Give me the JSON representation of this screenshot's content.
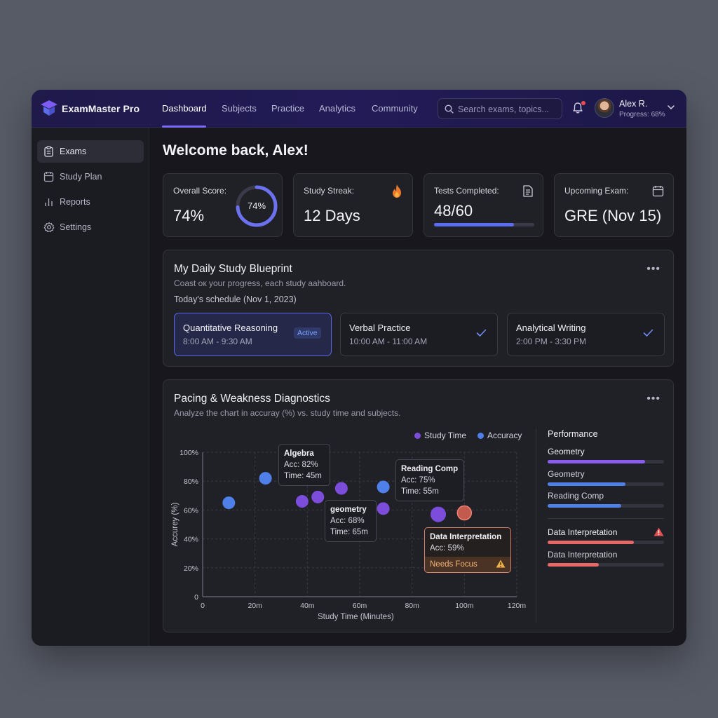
{
  "app": {
    "brand": "ExamMaster Pro",
    "nav": [
      "Dashboard",
      "Subjects",
      "Practice",
      "Analytics",
      "Community"
    ],
    "search_placeholder": "Search exams, topics...",
    "user": {
      "name": "Alex R.",
      "progress": "Progress: 68%"
    }
  },
  "sidebar": {
    "items": [
      {
        "label": "Exams",
        "icon": "clipboard-icon",
        "active": true
      },
      {
        "label": "Study Plan",
        "icon": "calendar-icon",
        "active": false
      },
      {
        "label": "Reports",
        "icon": "bar-chart-icon",
        "active": false
      },
      {
        "label": "Settings",
        "icon": "gear-icon",
        "active": false
      }
    ]
  },
  "main": {
    "welcome": "Welcome back, Alex!",
    "stats": {
      "overall": {
        "label": "Overall Score:",
        "value": "74%",
        "ring_text": "74%",
        "ring_fraction": 0.74
      },
      "streak": {
        "label": "Study Streak:",
        "value": "12 Days",
        "icon": "flame-icon"
      },
      "tests": {
        "label": "Tests Completed:",
        "value": "48/60",
        "fraction": 0.8,
        "icon": "document-icon"
      },
      "upcoming": {
        "label": "Upcoming Exam:",
        "value": "GRE (Nov 15)",
        "icon": "calendar-icon"
      }
    },
    "blueprint": {
      "title": "My Daily Study Blueprint",
      "subtitle": "Coast oк your progress, each study aahboard.",
      "schedule_label": "Today's schedule (Nov 1, 2023)",
      "sessions": [
        {
          "title": "Quantitative Reasoning",
          "time": "8:00 AM - 9:30 AM",
          "badge": "Active"
        },
        {
          "title": "Verbal Practice",
          "time": "10:00 AM - 11:00 AM"
        },
        {
          "title": "Analytical Writing",
          "time": "2:00 PM - 3:30 PM"
        }
      ]
    },
    "diagnostics": {
      "title": "Pacing & Weakness Diagnostics",
      "subtitle": "Analyze the chart in accuray (%) vs. study time and subjects.",
      "legend": [
        {
          "name": "Study Time",
          "color": "#7c4ddb"
        },
        {
          "name": "Accuracy",
          "color": "#4f7fe8"
        }
      ],
      "tooltips": {
        "algebra": {
          "title": "Algebra",
          "acc": "Acc: 82%",
          "time": "Time: 45m"
        },
        "reading": {
          "title": "Reading Comp",
          "acc": "Acc: 75%",
          "time": "Time: 55m"
        },
        "geometry": {
          "title": "geometry",
          "acc": "Acc: 68%",
          "time": "Time: 65m"
        },
        "data": {
          "title": "Data Interpretation",
          "acc": "Acc: 59%",
          "flag": "Needs Focus"
        }
      },
      "performance": {
        "title": "Performance",
        "items": [
          {
            "label": "Geometry",
            "value": 0.84,
            "color": "#8a5cf0",
            "strong": true
          },
          {
            "label": "Geometry",
            "value": 0.67,
            "color": "#4f7fe8",
            "strong": false
          },
          {
            "label": "Reading Comp",
            "value": 0.63,
            "color": "#4f7fe8",
            "strong": false
          },
          {
            "label": "Data Interpretation",
            "value": 0.74,
            "color": "#e56767",
            "strong": true,
            "warning": true
          },
          {
            "label": "Data Interpretation",
            "value": 0.44,
            "color": "#e56767",
            "strong": false
          }
        ]
      }
    }
  },
  "chart_data": {
    "type": "scatter",
    "xlabel": "Study Time (Minutes)",
    "ylabel": "Accurey (%)",
    "xlim": [
      0,
      120
    ],
    "ylim": [
      0,
      100
    ],
    "x_ticks": [
      "0",
      "20m",
      "40m",
      "60m",
      "80m",
      "100m",
      "120m"
    ],
    "y_ticks": [
      "0",
      "20%",
      "40%",
      "60%",
      "80%",
      "100%"
    ],
    "series": [
      {
        "name": "Study Time",
        "color": "#7c4ddb",
        "points": [
          [
            38,
            66
          ],
          [
            44,
            69
          ],
          [
            53,
            75
          ],
          [
            69,
            61
          ],
          [
            90,
            57
          ]
        ]
      },
      {
        "name": "Accuracy",
        "color": "#4f7fe8",
        "points": [
          [
            10,
            65
          ],
          [
            24,
            82
          ],
          [
            69,
            76
          ]
        ]
      },
      {
        "name": "",
        "color": "#e56767",
        "points": [
          [
            100,
            58
          ]
        ]
      }
    ]
  }
}
